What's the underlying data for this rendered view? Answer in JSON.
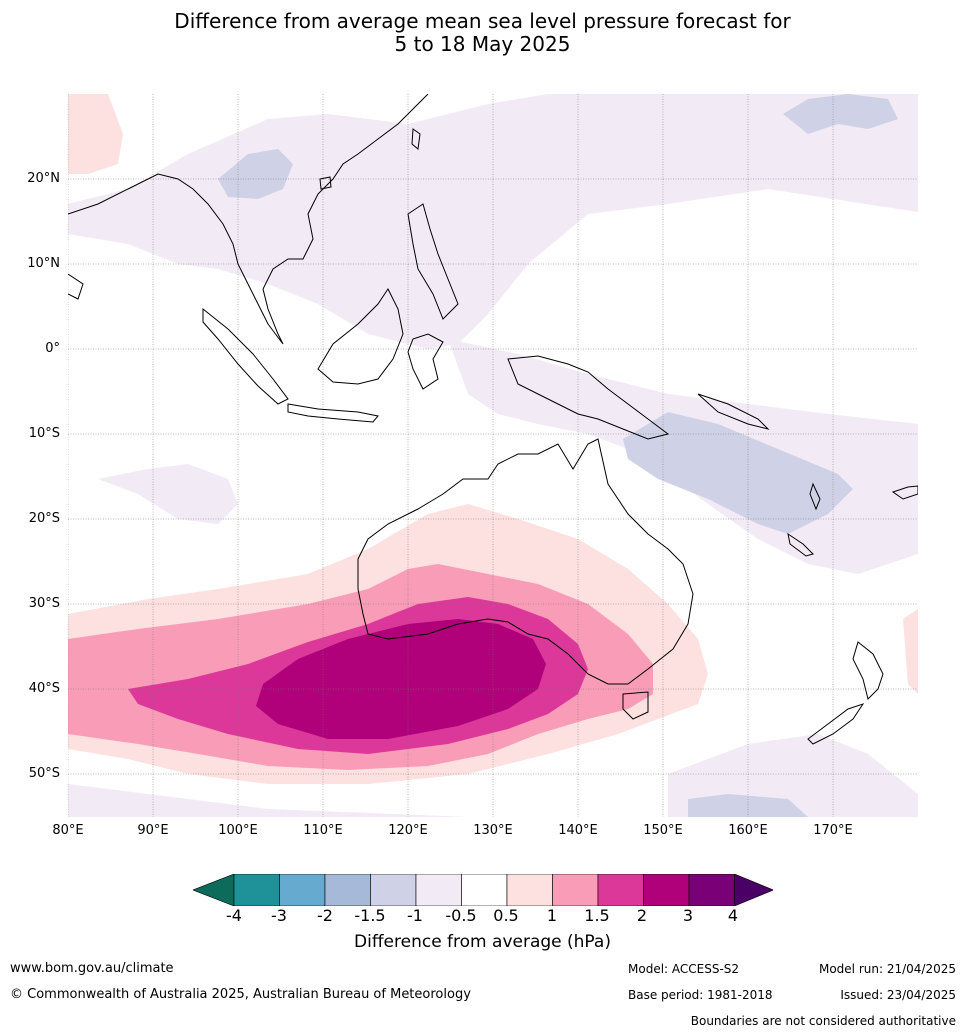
{
  "title_line1": "Difference from average mean sea level pressure forecast for",
  "title_line2": "5 to 18 May 2025",
  "lat_labels": [
    "20°N",
    "10°N",
    "0°",
    "10°S",
    "20°S",
    "30°S",
    "40°S",
    "50°S"
  ],
  "lon_labels": [
    "80°E",
    "90°E",
    "100°E",
    "110°E",
    "120°E",
    "130°E",
    "140°E",
    "150°E",
    "160°E",
    "170°E"
  ],
  "colorbar": {
    "ticks": [
      "-4",
      "-3",
      "-2",
      "-1.5",
      "-1",
      "-0.5",
      "0.5",
      "1",
      "1.5",
      "2",
      "3",
      "4"
    ],
    "colors": [
      "#0d6b5c",
      "#1f9199",
      "#66aad0",
      "#a7b9d8",
      "#cfd2e6",
      "#f2eaf4",
      "#ffffff",
      "#fde0e0",
      "#f89cb8",
      "#dc3899",
      "#b0007a",
      "#7a0077",
      "#4b0066"
    ],
    "label": "Difference from average (hPa)"
  },
  "footer": {
    "website": "www.bom.gov.au/climate",
    "copyright": "© Commonwealth of Australia 2025, Australian Bureau of Meteorology",
    "model": "Model: ACCESS-S2",
    "base_period": "Base period: 1981-2018",
    "model_run": "Model run: 21/04/2025",
    "issued": "Issued: 23/04/2025",
    "disclaimer": "Boundaries are not considered authoritative"
  }
}
